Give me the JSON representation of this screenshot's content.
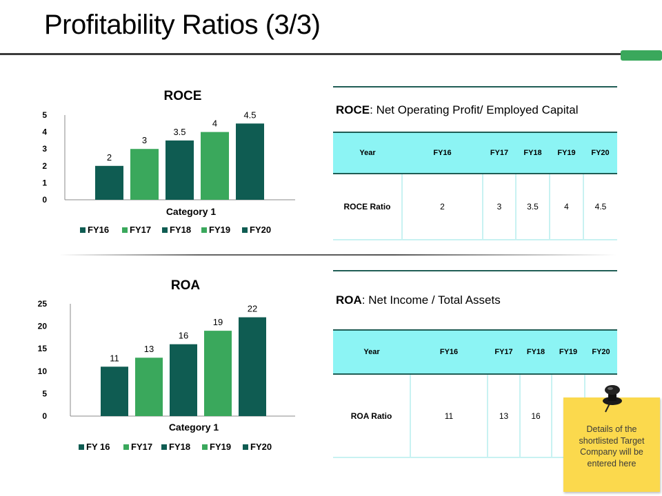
{
  "page": {
    "title": "Profitability Ratios (3/3)"
  },
  "colors": {
    "dark_green": "#0f5c52",
    "light_green": "#3aa85c",
    "header_cyan": "#8cf4f4",
    "note_yellow": "#fbd94d",
    "accent": "#3aa85c"
  },
  "chart_data": [
    {
      "type": "bar",
      "title": "ROCE",
      "categories": [
        "Category 1"
      ],
      "series": [
        {
          "name": "FY16",
          "values": [
            2
          ]
        },
        {
          "name": "FY17",
          "values": [
            3
          ]
        },
        {
          "name": "FY18",
          "values": [
            3.5
          ]
        },
        {
          "name": "FY19",
          "values": [
            4
          ]
        },
        {
          "name": "FY20",
          "values": [
            4.5
          ]
        }
      ],
      "ylim": [
        0,
        5
      ],
      "yticks": [
        0,
        1,
        2,
        3,
        4,
        5
      ],
      "data_labels": [
        "2",
        "3",
        "3.5",
        "4",
        "4.5"
      ],
      "legend": "bottom",
      "grid": false
    },
    {
      "type": "bar",
      "title": "ROA",
      "categories": [
        "Category 1"
      ],
      "series": [
        {
          "name": "FY 16",
          "values": [
            11
          ]
        },
        {
          "name": "FY17",
          "values": [
            13
          ]
        },
        {
          "name": "FY18",
          "values": [
            16
          ]
        },
        {
          "name": "FY19",
          "values": [
            19
          ]
        },
        {
          "name": "FY20",
          "values": [
            22
          ]
        }
      ],
      "ylim": [
        0,
        25
      ],
      "yticks": [
        0,
        5,
        10,
        15,
        20,
        25
      ],
      "data_labels": [
        "11",
        "13",
        "16",
        "19",
        "22"
      ],
      "legend": "bottom",
      "grid": false
    }
  ],
  "roce_panel": {
    "formula_name": "ROCE",
    "formula_text": ": Net Operating Profit/ Employed Capital",
    "headers": [
      "Year",
      "FY16",
      "FY17",
      "FY18",
      "FY19",
      "FY20"
    ],
    "row": [
      "ROCE Ratio",
      "2",
      "3",
      "3.5",
      "4",
      "4.5"
    ]
  },
  "roa_panel": {
    "formula_name": "ROA",
    "formula_text": ": Net Income / Total Assets",
    "headers": [
      "Year",
      "FY16",
      "FY17",
      "FY18",
      "FY19",
      "FY20"
    ],
    "row": [
      "ROA Ratio",
      "11",
      "13",
      "16",
      "",
      ""
    ]
  },
  "sticky_note": {
    "text": "Details of the shortlisted Target Company will be entered here"
  }
}
